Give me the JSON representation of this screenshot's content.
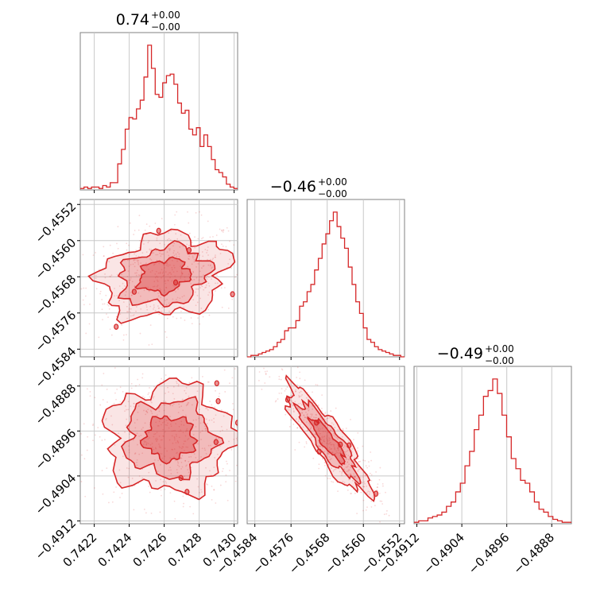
{
  "chart_data": {
    "type": "corner",
    "color": "#d62728",
    "parameters": [
      {
        "title_value": "0.74",
        "title_plus": "+0.00",
        "title_minus": "−0.00",
        "ticks": [
          0.7422,
          0.7424,
          0.7426,
          0.7428,
          0.743
        ],
        "tick_labels": [
          "0.7422",
          "0.7424",
          "0.7426",
          "0.7428",
          "0.7430"
        ],
        "range": [
          0.74212,
          0.74302
        ],
        "hist": [
          0.01,
          0.02,
          0.01,
          0.02,
          0.02,
          0.01,
          0.03,
          0.02,
          0.05,
          0.05,
          0.18,
          0.28,
          0.42,
          0.5,
          0.49,
          0.56,
          0.62,
          0.78,
          1.0,
          0.84,
          0.66,
          0.64,
          0.74,
          0.79,
          0.8,
          0.73,
          0.6,
          0.53,
          0.55,
          0.42,
          0.38,
          0.43,
          0.3,
          0.38,
          0.3,
          0.21,
          0.14,
          0.12,
          0.09,
          0.04,
          0.02,
          0.01
        ]
      },
      {
        "title_value": "−0.46",
        "title_plus": "+0.00",
        "title_minus": "−0.00",
        "ticks": [
          -0.4584,
          -0.4576,
          -0.4568,
          -0.456,
          -0.4552
        ],
        "tick_labels": [
          "−0.4584",
          "−0.4576",
          "−0.4568",
          "−0.4560",
          "−0.4552"
        ],
        "range": [
          -0.45857,
          -0.45509
        ],
        "hist": [
          0.0,
          0.01,
          0.01,
          0.02,
          0.03,
          0.04,
          0.05,
          0.07,
          0.1,
          0.12,
          0.18,
          0.2,
          0.2,
          0.25,
          0.35,
          0.38,
          0.45,
          0.5,
          0.6,
          0.68,
          0.78,
          0.85,
          0.94,
          1.0,
          0.9,
          0.82,
          0.75,
          0.62,
          0.5,
          0.38,
          0.3,
          0.2,
          0.12,
          0.1,
          0.07,
          0.05,
          0.04,
          0.03,
          0.02,
          0.01,
          0.01,
          0.0
        ]
      },
      {
        "title_value": "−0.49",
        "title_plus": "+0.00",
        "title_minus": "−0.00",
        "ticks": [
          -0.4912,
          -0.4904,
          -0.4896,
          -0.4888
        ],
        "tick_labels": [
          "−0.4912",
          "−0.4904",
          "−0.4896",
          "−0.4888"
        ],
        "range": [
          -0.49125,
          -0.48845
        ],
        "hist": [
          0.01,
          0.02,
          0.02,
          0.04,
          0.05,
          0.06,
          0.08,
          0.12,
          0.15,
          0.22,
          0.28,
          0.4,
          0.5,
          0.65,
          0.75,
          0.88,
          0.92,
          1.0,
          0.9,
          0.75,
          0.6,
          0.45,
          0.38,
          0.3,
          0.28,
          0.22,
          0.15,
          0.1,
          0.08,
          0.05,
          0.03,
          0.02,
          0.01,
          0.01
        ]
      }
    ],
    "pairs": [
      {
        "row": 1,
        "col": 0,
        "mean": [
          0.7426,
          -0.45678
        ],
        "std": [
          0.00018,
          0.00046
        ],
        "corr": 0.2
      },
      {
        "row": 2,
        "col": 0,
        "mean": [
          0.74263,
          -0.48973
        ],
        "std": [
          0.00018,
          0.00048
        ],
        "corr": 0.0
      },
      {
        "row": 2,
        "col": 1,
        "mean": [
          -0.45678,
          -0.48977
        ],
        "std": [
          0.00046,
          0.00048
        ],
        "corr": -0.88
      }
    ]
  }
}
